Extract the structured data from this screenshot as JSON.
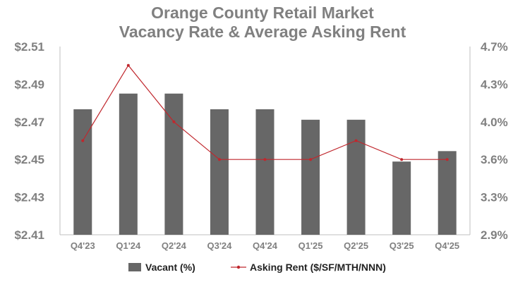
{
  "chart_data": {
    "type": "bar",
    "title": [
      "Orange County Retail Market",
      "Vacancy Rate & Average Asking Rent"
    ],
    "categories": [
      "Q4'23",
      "Q1'24",
      "Q2'24",
      "Q3'24",
      "Q4'24",
      "Q1'25",
      "Q2'25",
      "Q3'25",
      "Q4'25"
    ],
    "series": [
      {
        "name": "Vacant (%)",
        "type": "bar",
        "axis": "right",
        "color": "#676767",
        "values": [
          4.1,
          4.25,
          4.25,
          4.1,
          4.1,
          4.0,
          4.0,
          3.6,
          3.7
        ]
      },
      {
        "name": "Asking Rent ($/SF/MTH/NNN)",
        "type": "line",
        "axis": "left",
        "color": "#c0272d",
        "values": [
          2.46,
          2.5,
          2.47,
          2.45,
          2.45,
          2.45,
          2.46,
          2.45,
          2.45
        ]
      }
    ],
    "left_axis": {
      "ticks": [
        "$2.51",
        "$2.49",
        "$2.47",
        "$2.45",
        "$2.43",
        "$2.41"
      ],
      "range": [
        2.41,
        2.51
      ]
    },
    "right_axis": {
      "ticks": [
        "4.7%",
        "4.3%",
        "4.0%",
        "3.6%",
        "3.3%",
        "2.9%"
      ],
      "range": [
        2.9,
        4.7
      ]
    },
    "grid": false,
    "legend_position": "bottom"
  }
}
